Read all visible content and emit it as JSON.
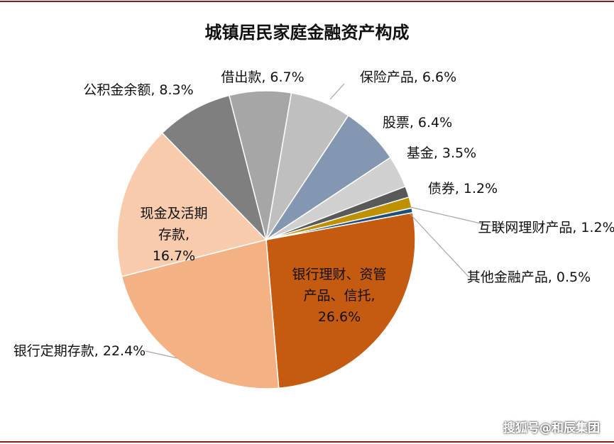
{
  "title": "城镇居民家庭金融资产构成",
  "watermark": "搜狐号@和辰集团",
  "chart_data": {
    "type": "pie",
    "categories": [
      "银行理财、资管产品、信托,",
      "银行定期存款,",
      "现金及活期存款,",
      "公积金余额,",
      "借出款,",
      "保险产品,",
      "股票,",
      "基金,",
      "债券,",
      "互联网理财产品,",
      "其他金融产品,"
    ],
    "values": [
      26.6,
      22.4,
      16.7,
      8.3,
      6.7,
      6.6,
      6.4,
      3.5,
      1.2,
      1.2,
      0.5
    ],
    "value_labels": [
      "26.6%",
      "22.4%",
      "16.7%",
      "8.3%",
      "6.7%",
      "6.6%",
      "6.4%",
      "3.5%",
      "1.2%",
      "1.2%",
      "0.5%"
    ],
    "colors": [
      "#c55a11",
      "#f4b183",
      "#f8cbad",
      "#7f7f7f",
      "#a6a6a6",
      "#bfbfbf",
      "#8497b0",
      "#d0d0d0",
      "#595959",
      "#bf9000",
      "#1f4e79"
    ]
  }
}
